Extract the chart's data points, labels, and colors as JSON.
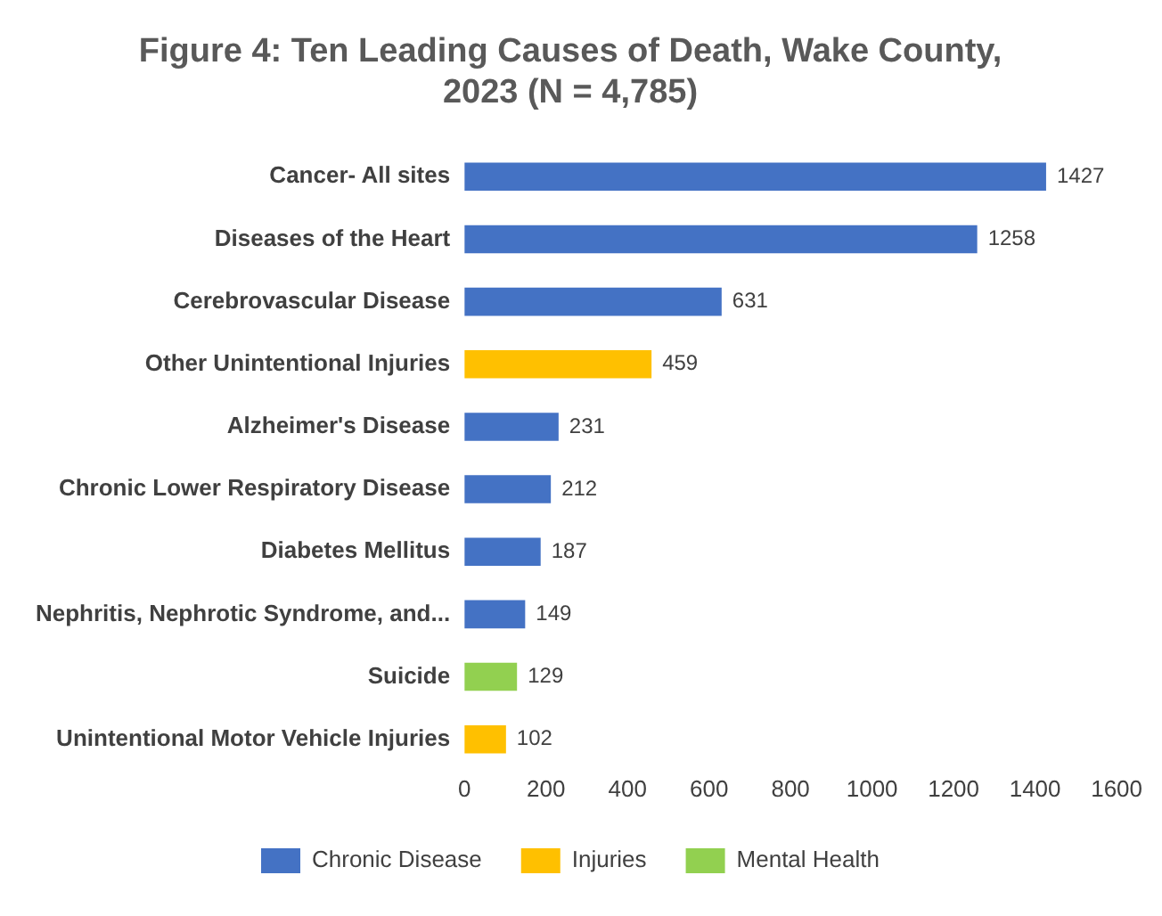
{
  "chart_data": {
    "type": "bar",
    "orientation": "horizontal",
    "title": "Figure 4: Ten Leading Causes of Death, Wake County, 2023 (N = 4,785)",
    "categories": [
      "Cancer- All sites",
      "Diseases of the Heart",
      "Cerebrovascular Disease",
      "Other Unintentional Injuries",
      "Alzheimer's Disease",
      "Chronic Lower Respiratory Disease",
      "Diabetes Mellitus",
      "Nephritis, Nephrotic Syndrome, and...",
      "Suicide",
      "Unintentional Motor Vehicle Injuries"
    ],
    "series": [
      {
        "name": "Chronic Disease",
        "color": "#4472c4",
        "values": [
          1427,
          1258,
          631,
          null,
          231,
          212,
          187,
          149,
          null,
          null
        ]
      },
      {
        "name": "Injuries",
        "color": "#ffc000",
        "values": [
          null,
          null,
          null,
          459,
          null,
          null,
          null,
          null,
          null,
          102
        ]
      },
      {
        "name": "Mental Health",
        "color": "#92d050",
        "values": [
          null,
          null,
          null,
          null,
          null,
          null,
          null,
          null,
          129,
          null
        ]
      }
    ],
    "xlim": [
      0,
      1600
    ],
    "xticks": [
      0,
      200,
      400,
      600,
      800,
      1000,
      1200,
      1400,
      1600
    ],
    "grid": false,
    "legend": "bottom",
    "data_labels": true
  }
}
